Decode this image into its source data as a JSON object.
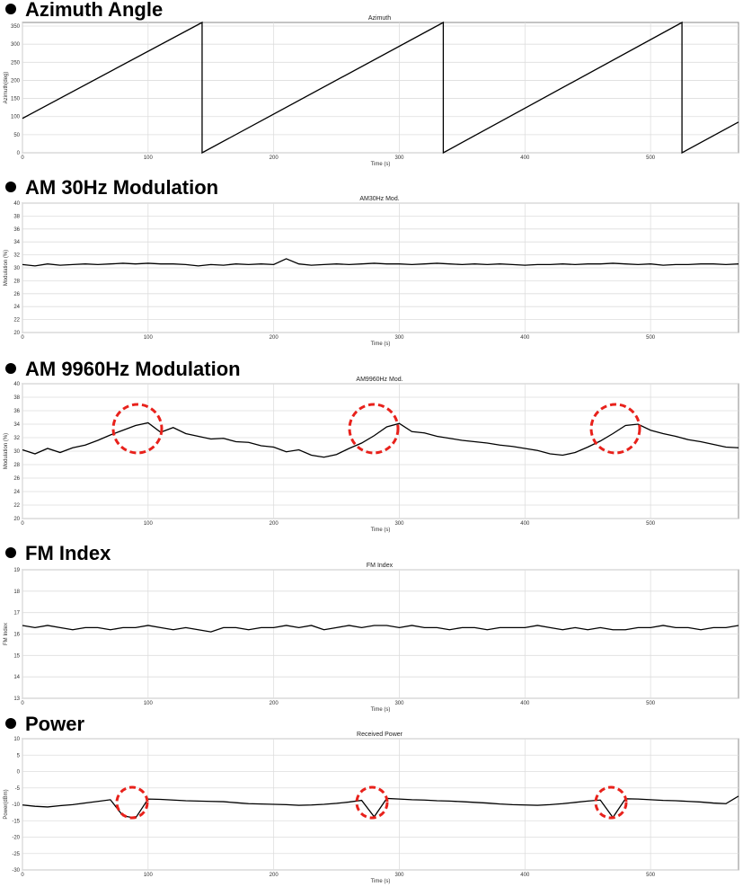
{
  "chart_data": [
    {
      "type": "line",
      "heading": "Azimuth Angle",
      "title": "Azimuth",
      "xlabel": "Time (s)",
      "ylabel": "Azimuth(deg)",
      "color": "#000000",
      "grid": true,
      "xlim": [
        0,
        570
      ],
      "xticks": [
        0,
        100,
        200,
        300,
        400,
        500
      ],
      "ylim": [
        0,
        360
      ],
      "yticks": [
        0,
        50,
        100,
        150,
        200,
        250,
        300,
        350
      ],
      "x": [
        0,
        143,
        143,
        335,
        335,
        525,
        525,
        570
      ],
      "values": [
        95,
        360,
        0,
        360,
        0,
        360,
        0,
        85
      ]
    },
    {
      "type": "line",
      "heading": "AM 30Hz Modulation",
      "title": "AM30Hz Mod.",
      "xlabel": "Time (s)",
      "ylabel": "Modulation (%)",
      "color": "#000000",
      "grid": true,
      "xlim": [
        0,
        570
      ],
      "xticks": [
        0,
        100,
        200,
        300,
        400,
        500
      ],
      "ylim": [
        20,
        40
      ],
      "yticks": [
        20,
        22,
        24,
        26,
        28,
        30,
        32,
        34,
        36,
        38,
        40
      ],
      "x": [
        0,
        10,
        20,
        30,
        40,
        50,
        60,
        70,
        80,
        90,
        100,
        110,
        120,
        130,
        140,
        150,
        160,
        170,
        180,
        190,
        200,
        210,
        220,
        230,
        240,
        250,
        260,
        270,
        280,
        290,
        300,
        310,
        320,
        330,
        340,
        350,
        360,
        370,
        380,
        390,
        400,
        410,
        420,
        430,
        440,
        450,
        460,
        470,
        480,
        490,
        500,
        510,
        520,
        530,
        540,
        550,
        560,
        570
      ],
      "values": [
        30.5,
        30.3,
        30.6,
        30.4,
        30.5,
        30.6,
        30.5,
        30.6,
        30.7,
        30.6,
        30.7,
        30.6,
        30.6,
        30.5,
        30.3,
        30.5,
        30.4,
        30.6,
        30.5,
        30.6,
        30.5,
        31.4,
        30.6,
        30.4,
        30.5,
        30.6,
        30.5,
        30.6,
        30.7,
        30.6,
        30.6,
        30.5,
        30.6,
        30.7,
        30.6,
        30.5,
        30.6,
        30.5,
        30.6,
        30.5,
        30.4,
        30.5,
        30.5,
        30.6,
        30.5,
        30.6,
        30.6,
        30.7,
        30.6,
        30.5,
        30.6,
        30.4,
        30.5,
        30.5,
        30.6,
        30.6,
        30.5,
        30.6
      ]
    },
    {
      "type": "line",
      "heading": "AM 9960Hz Modulation",
      "title": "AM9960Hz Mod.",
      "xlabel": "Time (s)",
      "ylabel": "Modulation (%)",
      "color": "#000000",
      "grid": true,
      "xlim": [
        0,
        570
      ],
      "xticks": [
        0,
        100,
        200,
        300,
        400,
        500
      ],
      "ylim": [
        20,
        40
      ],
      "yticks": [
        20,
        22,
        24,
        26,
        28,
        30,
        32,
        34,
        36,
        38,
        40
      ],
      "x": [
        0,
        10,
        20,
        30,
        40,
        50,
        60,
        70,
        80,
        90,
        100,
        110,
        120,
        130,
        140,
        150,
        160,
        170,
        180,
        190,
        200,
        210,
        220,
        230,
        240,
        250,
        260,
        270,
        280,
        290,
        300,
        310,
        320,
        330,
        340,
        350,
        360,
        370,
        380,
        390,
        400,
        410,
        420,
        430,
        440,
        450,
        460,
        470,
        480,
        490,
        500,
        510,
        520,
        530,
        540,
        550,
        560,
        570
      ],
      "values": [
        30.2,
        29.6,
        30.4,
        29.8,
        30.5,
        30.9,
        31.6,
        32.4,
        33.1,
        33.8,
        34.2,
        32.8,
        33.5,
        32.6,
        32.2,
        31.8,
        31.9,
        31.4,
        31.3,
        30.8,
        30.6,
        29.9,
        30.2,
        29.4,
        29.1,
        29.5,
        30.4,
        31.2,
        32.3,
        33.6,
        34.1,
        32.9,
        32.7,
        32.2,
        31.9,
        31.6,
        31.4,
        31.2,
        30.9,
        30.7,
        30.4,
        30.1,
        29.6,
        29.4,
        29.8,
        30.6,
        31.5,
        32.6,
        33.8,
        34.0,
        33.1,
        32.6,
        32.2,
        31.7,
        31.4,
        31.0,
        30.6,
        30.5
      ]
    },
    {
      "type": "line",
      "heading": "FM Index",
      "title": "FM Index",
      "xlabel": "Time (s)",
      "ylabel": "FM Index",
      "color": "#000000",
      "grid": true,
      "xlim": [
        0,
        570
      ],
      "xticks": [
        0,
        100,
        200,
        300,
        400,
        500
      ],
      "ylim": [
        13,
        19
      ],
      "yticks": [
        13,
        14,
        15,
        16,
        17,
        18,
        19
      ],
      "x": [
        0,
        10,
        20,
        30,
        40,
        50,
        60,
        70,
        80,
        90,
        100,
        110,
        120,
        130,
        140,
        150,
        160,
        170,
        180,
        190,
        200,
        210,
        220,
        230,
        240,
        250,
        260,
        270,
        280,
        290,
        300,
        310,
        320,
        330,
        340,
        350,
        360,
        370,
        380,
        390,
        400,
        410,
        420,
        430,
        440,
        450,
        460,
        470,
        480,
        490,
        500,
        510,
        520,
        530,
        540,
        550,
        560,
        570
      ],
      "values": [
        16.4,
        16.3,
        16.4,
        16.3,
        16.2,
        16.3,
        16.3,
        16.2,
        16.3,
        16.3,
        16.4,
        16.3,
        16.2,
        16.3,
        16.2,
        16.1,
        16.3,
        16.3,
        16.2,
        16.3,
        16.3,
        16.4,
        16.3,
        16.4,
        16.2,
        16.3,
        16.4,
        16.3,
        16.4,
        16.4,
        16.3,
        16.4,
        16.3,
        16.3,
        16.2,
        16.3,
        16.3,
        16.2,
        16.3,
        16.3,
        16.3,
        16.4,
        16.3,
        16.2,
        16.3,
        16.2,
        16.3,
        16.2,
        16.2,
        16.3,
        16.3,
        16.4,
        16.3,
        16.3,
        16.2,
        16.3,
        16.3,
        16.4
      ]
    },
    {
      "type": "line",
      "heading": "Power",
      "title": "Received Power",
      "xlabel": "Time (s)",
      "ylabel": "Power(dBm)",
      "color": "#000000",
      "grid": true,
      "xlim": [
        0,
        570
      ],
      "xticks": [
        0,
        100,
        200,
        300,
        400,
        500
      ],
      "ylim": [
        -30,
        10
      ],
      "yticks": [
        -30,
        -25,
        -20,
        -15,
        -10,
        -5,
        0,
        5,
        10
      ],
      "x": [
        0,
        10,
        20,
        30,
        40,
        50,
        60,
        70,
        80,
        90,
        100,
        110,
        120,
        130,
        140,
        150,
        160,
        170,
        180,
        190,
        200,
        210,
        220,
        230,
        240,
        250,
        260,
        270,
        280,
        290,
        300,
        310,
        320,
        330,
        340,
        350,
        360,
        370,
        380,
        390,
        400,
        410,
        420,
        430,
        440,
        450,
        460,
        470,
        480,
        490,
        500,
        510,
        520,
        530,
        540,
        550,
        560,
        570
      ],
      "values": [
        -10.2,
        -10.6,
        -10.8,
        -10.4,
        -10.1,
        -9.6,
        -9.1,
        -8.6,
        -13.5,
        -14.2,
        -8.4,
        -8.5,
        -8.7,
        -8.9,
        -9.0,
        -9.1,
        -9.2,
        -9.5,
        -9.8,
        -9.9,
        -10.0,
        -10.1,
        -10.3,
        -10.2,
        -10.0,
        -9.7,
        -9.3,
        -8.8,
        -13.8,
        -8.2,
        -8.4,
        -8.6,
        -8.7,
        -8.9,
        -9.0,
        -9.2,
        -9.4,
        -9.6,
        -9.9,
        -10.1,
        -10.2,
        -10.3,
        -10.1,
        -9.8,
        -9.4,
        -9.0,
        -8.7,
        -14.0,
        -8.3,
        -8.4,
        -8.6,
        -8.8,
        -8.9,
        -9.1,
        -9.3,
        -9.6,
        -9.8,
        -7.5
      ]
    }
  ]
}
